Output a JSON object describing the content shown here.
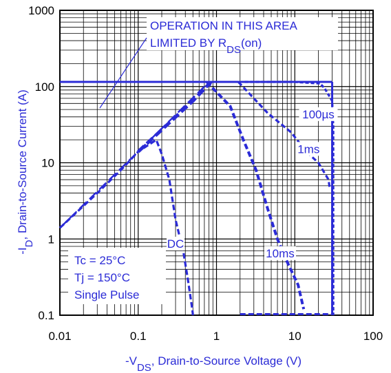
{
  "chart_data": {
    "type": "line",
    "xscale": "log",
    "yscale": "log",
    "xlim": [
      0.01,
      100
    ],
    "ylim": [
      0.1,
      1000
    ],
    "grid": true,
    "xticks": [
      "0.01",
      "0.1",
      "1",
      "10",
      "100"
    ],
    "yticks": [
      "0.1",
      "1",
      "10",
      "100",
      "1000"
    ],
    "xlabel": {
      "prefix": "-V",
      "sub": "DS",
      "suffix": ", Drain-to-Source Voltage (V)"
    },
    "ylabel": {
      "prefix": "-I",
      "sub": "D",
      "suffix": ", Drain-to-Source Current (A)"
    },
    "annotations": {
      "rds_line1": "OPERATION IN THIS AREA",
      "rds_line2_prefix": "LIMITED BY R",
      "rds_line2_sub": "DS",
      "rds_line2_suffix": "(on)",
      "conditions": [
        "Tc = 25°C",
        "Tj = 150°C",
        "Single Pulse"
      ]
    },
    "series": [
      {
        "name": "100µs",
        "points": [
          [
            2.3,
            115
          ],
          [
            10,
            115
          ],
          [
            15,
            112
          ],
          [
            21,
            110
          ],
          [
            24,
            95
          ],
          [
            30,
            65
          ],
          [
            31,
            30
          ],
          [
            31,
            0.1
          ]
        ]
      },
      {
        "name": "1ms",
        "points": [
          [
            1.9,
            115
          ],
          [
            4.5,
            45
          ],
          [
            9,
            25
          ],
          [
            14,
            14
          ],
          [
            20,
            10
          ],
          [
            27,
            6
          ],
          [
            28,
            4.5
          ]
        ]
      },
      {
        "name": "10ms",
        "points": [
          [
            0.75,
            115
          ],
          [
            1.5,
            55
          ],
          [
            2.2,
            20
          ],
          [
            3.2,
            8
          ],
          [
            4.5,
            2.5
          ],
          [
            6,
            1
          ],
          [
            8,
            0.5
          ],
          [
            11,
            0.25
          ],
          [
            13,
            0.12
          ]
        ]
      },
      {
        "name": "DC",
        "points": [
          [
            0.01,
            1.4
          ],
          [
            0.03,
            4
          ],
          [
            0.06,
            8
          ],
          [
            0.1,
            14
          ],
          [
            0.17,
            20
          ],
          [
            0.2,
            13
          ],
          [
            0.25,
            6
          ],
          [
            0.3,
            1.8
          ],
          [
            0.38,
            0.65
          ],
          [
            0.43,
            0.3
          ],
          [
            0.49,
            0.12
          ],
          [
            0.5,
            0.1
          ]
        ]
      },
      {
        "name": "rds_on_limit",
        "points": [
          [
            0.01,
            1.4
          ],
          [
            0.1,
            14
          ],
          [
            0.7,
            100
          ],
          [
            0.85,
            115
          ]
        ]
      },
      {
        "name": "dc_boundary",
        "points": [
          [
            0.1,
            14
          ],
          [
            0.5,
            65
          ],
          [
            0.85,
            115
          ]
        ]
      }
    ],
    "limit_lines": {
      "current_limit": 115,
      "voltage_limit": 30
    },
    "series_labels": [
      "100µs",
      "1ms",
      "10ms",
      "DC"
    ],
    "colors": {
      "curve": "#2b2bd6",
      "grid": "#000000",
      "text": "#000000"
    }
  }
}
